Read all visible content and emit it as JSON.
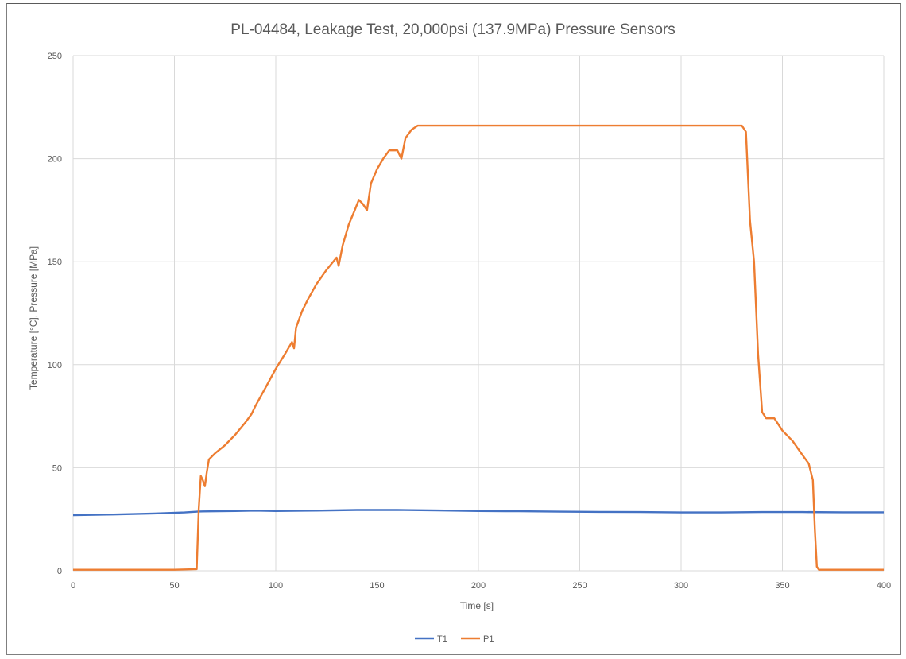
{
  "chart_data": {
    "type": "line",
    "title": "PL-04484, Leakage Test, 20,000psi (137.9MPa) Pressure Sensors",
    "xlabel": "Time [s]",
    "ylabel": "Temperature [°C], Pressure [MPa]",
    "xlim": [
      0,
      400
    ],
    "ylim": [
      0,
      250
    ],
    "xticks": [
      "0",
      "50",
      "100",
      "150",
      "200",
      "250",
      "300",
      "350",
      "400"
    ],
    "yticks": [
      "0",
      "50",
      "100",
      "150",
      "200",
      "250"
    ],
    "grid": true,
    "legend_position": "bottom",
    "series": [
      {
        "name": "T1",
        "color": "#4472c4",
        "points": [
          [
            0,
            27
          ],
          [
            20,
            27.3
          ],
          [
            40,
            27.8
          ],
          [
            55,
            28.3
          ],
          [
            62,
            28.8
          ],
          [
            80,
            29
          ],
          [
            90,
            29.2
          ],
          [
            100,
            29
          ],
          [
            120,
            29.2
          ],
          [
            140,
            29.5
          ],
          [
            160,
            29.5
          ],
          [
            180,
            29.3
          ],
          [
            200,
            29
          ],
          [
            220,
            28.9
          ],
          [
            240,
            28.7
          ],
          [
            260,
            28.6
          ],
          [
            280,
            28.5
          ],
          [
            300,
            28.3
          ],
          [
            320,
            28.3
          ],
          [
            340,
            28.5
          ],
          [
            360,
            28.5
          ],
          [
            380,
            28.4
          ],
          [
            400,
            28.4
          ]
        ]
      },
      {
        "name": "P1",
        "color": "#ed7d31",
        "points": [
          [
            0,
            0.5
          ],
          [
            50,
            0.5
          ],
          [
            61,
            0.8
          ],
          [
            62,
            30
          ],
          [
            63,
            46
          ],
          [
            64,
            44
          ],
          [
            65,
            41
          ],
          [
            66,
            48
          ],
          [
            67,
            54
          ],
          [
            70,
            57
          ],
          [
            75,
            61
          ],
          [
            80,
            66
          ],
          [
            85,
            72
          ],
          [
            88,
            76
          ],
          [
            90,
            80
          ],
          [
            95,
            89
          ],
          [
            100,
            98
          ],
          [
            105,
            106
          ],
          [
            108,
            111
          ],
          [
            109,
            108
          ],
          [
            110,
            118
          ],
          [
            113,
            126
          ],
          [
            116,
            132
          ],
          [
            120,
            139
          ],
          [
            125,
            146
          ],
          [
            130,
            152
          ],
          [
            131,
            148
          ],
          [
            133,
            158
          ],
          [
            136,
            168
          ],
          [
            139,
            175
          ],
          [
            141,
            180
          ],
          [
            143,
            178
          ],
          [
            145,
            175
          ],
          [
            147,
            188
          ],
          [
            150,
            195
          ],
          [
            153,
            200
          ],
          [
            156,
            204
          ],
          [
            160,
            204
          ],
          [
            162,
            200
          ],
          [
            164,
            210
          ],
          [
            167,
            214
          ],
          [
            170,
            216
          ],
          [
            200,
            216
          ],
          [
            250,
            216
          ],
          [
            300,
            216
          ],
          [
            330,
            216
          ],
          [
            332,
            213
          ],
          [
            334,
            170
          ],
          [
            336,
            150
          ],
          [
            338,
            105
          ],
          [
            340,
            77
          ],
          [
            342,
            74
          ],
          [
            346,
            74
          ],
          [
            350,
            68
          ],
          [
            355,
            63
          ],
          [
            360,
            56
          ],
          [
            363,
            52
          ],
          [
            365,
            44
          ],
          [
            366,
            20
          ],
          [
            367,
            2
          ],
          [
            368,
            0.5
          ],
          [
            400,
            0.5
          ]
        ]
      }
    ]
  }
}
